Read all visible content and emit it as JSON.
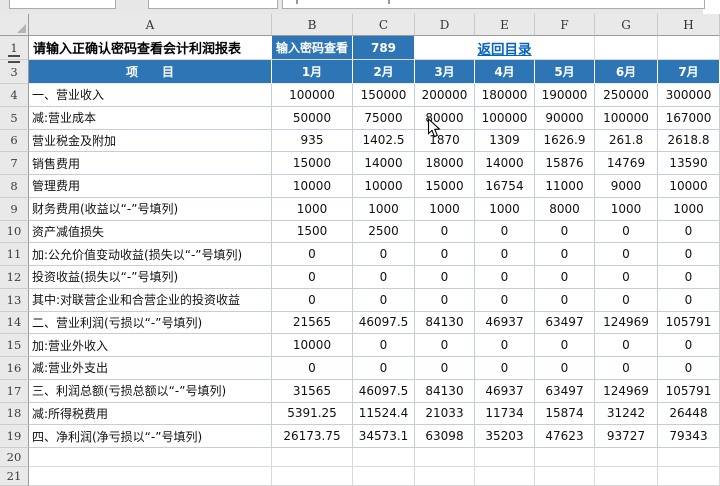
{
  "colors": {
    "accent_blue": "#2E75B6",
    "link_blue": "#0563C1"
  },
  "grid": {
    "column_letters": [
      "A",
      "B",
      "C",
      "D",
      "E",
      "F",
      "G",
      "H"
    ],
    "row_numbers": [
      1,
      3,
      4,
      5,
      6,
      7,
      8,
      9,
      10,
      11,
      12,
      13,
      14,
      15,
      16,
      17,
      18,
      19,
      20,
      21
    ]
  },
  "title_row": {
    "a1": "请输入正确认密码查看会计利润报表",
    "b1": "输入密码查看",
    "c1": "789",
    "link": "返回目录"
  },
  "table": {
    "item_header": "项　　目",
    "months": [
      "1月",
      "2月",
      "3月",
      "4月",
      "5月",
      "6月",
      "7月"
    ],
    "rows": [
      {
        "n": 4,
        "label": "一、营业收入",
        "values": [
          100000,
          150000,
          200000,
          180000,
          190000,
          250000,
          300000
        ]
      },
      {
        "n": 5,
        "label": "减:营业成本",
        "values": [
          50000,
          75000,
          80000,
          100000,
          90000,
          100000,
          167000
        ]
      },
      {
        "n": 6,
        "label": "营业税金及附加",
        "values": [
          935,
          1402.5,
          1870,
          1309,
          1626.9,
          261.8,
          2618.8
        ]
      },
      {
        "n": 7,
        "label": "销售费用",
        "values": [
          15000,
          14000,
          18000,
          14000,
          15876,
          14769,
          13590
        ]
      },
      {
        "n": 8,
        "label": "管理费用",
        "values": [
          10000,
          10000,
          15000,
          16754,
          11000,
          9000,
          10000
        ]
      },
      {
        "n": 9,
        "label": "财务费用(收益以“-”号填列)",
        "values": [
          1000,
          1000,
          1000,
          1000,
          8000,
          1000,
          1000
        ]
      },
      {
        "n": 10,
        "label": "资产减值损失",
        "values": [
          1500,
          2500,
          0,
          0,
          0,
          0,
          0
        ]
      },
      {
        "n": 11,
        "label": "加:公允价值变动收益(损失以“-”号填列)",
        "values": [
          0,
          0,
          0,
          0,
          0,
          0,
          0
        ]
      },
      {
        "n": 12,
        "label": "投资收益(损失以“-”号填列)",
        "values": [
          0,
          0,
          0,
          0,
          0,
          0,
          0
        ]
      },
      {
        "n": 13,
        "label": "其中:对联营企业和合营企业的投资收益",
        "values": [
          0,
          0,
          0,
          0,
          0,
          0,
          0
        ]
      },
      {
        "n": 14,
        "label": "二、营业利润(亏损以“-”号填列)",
        "values": [
          21565,
          46097.5,
          84130,
          46937,
          63497,
          124969,
          105791
        ]
      },
      {
        "n": 15,
        "label": "加:营业外收入",
        "values": [
          10000,
          0,
          0,
          0,
          0,
          0,
          0
        ]
      },
      {
        "n": 16,
        "label": "减:营业外支出",
        "values": [
          0,
          0,
          0,
          0,
          0,
          0,
          0
        ]
      },
      {
        "n": 17,
        "label": "三、利润总额(亏损总额以“-”号填列)",
        "values": [
          31565,
          46097.5,
          84130,
          46937,
          63497,
          124969,
          105791
        ]
      },
      {
        "n": 18,
        "label": "减:所得税费用",
        "values": [
          5391.25,
          11524.4,
          21033,
          11734,
          15874,
          31242,
          26448
        ]
      },
      {
        "n": 19,
        "label": "四、净利润(净亏损以“-”号填列)",
        "values": [
          26173.75,
          34573.1,
          63098,
          35203,
          47623,
          93727,
          79343
        ]
      }
    ],
    "empty_row_numbers": [
      20,
      21
    ]
  }
}
